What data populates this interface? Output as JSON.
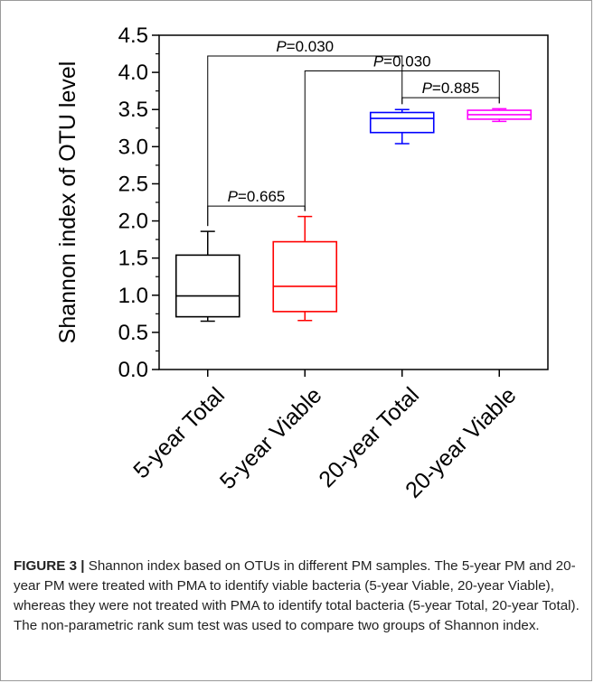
{
  "chart_data": {
    "type": "box",
    "ylabel": "Shannon index of OTU level",
    "ylim": [
      0.0,
      4.5
    ],
    "yticks": [
      "0.0",
      "0.5",
      "1.0",
      "1.5",
      "2.0",
      "2.5",
      "3.0",
      "3.5",
      "4.0",
      "4.5"
    ],
    "categories": [
      "5-year Total",
      "5-year Viable",
      "20-year Total",
      "20-year Viable"
    ],
    "colors": [
      "#000000",
      "#ff0000",
      "#0000ff",
      "#ff00ff"
    ],
    "boxes": [
      {
        "min": 0.65,
        "q1": 0.71,
        "median": 0.99,
        "q3": 1.54,
        "max": 1.86
      },
      {
        "min": 0.66,
        "q1": 0.78,
        "median": 1.12,
        "q3": 1.72,
        "max": 2.06
      },
      {
        "min": 3.04,
        "q1": 3.19,
        "median": 3.38,
        "q3": 3.46,
        "max": 3.5
      },
      {
        "min": 3.34,
        "q1": 3.37,
        "median": 3.43,
        "q3": 3.49,
        "max": 3.51
      }
    ],
    "comparisons": [
      {
        "groups": [
          0,
          1
        ],
        "label_prefix": "P",
        "label_value": "=0.665",
        "y": 2.2
      },
      {
        "groups": [
          0,
          2
        ],
        "label_prefix": "P",
        "label_value": "=0.030",
        "y": 4.22
      },
      {
        "groups": [
          1,
          3
        ],
        "label_prefix": "P",
        "label_value": "=0.030",
        "y": 4.02
      },
      {
        "groups": [
          2,
          3
        ],
        "label_prefix": "P",
        "label_value": "=0.885",
        "y": 3.66
      }
    ]
  },
  "caption": {
    "label": "FIGURE 3 |",
    "text": " Shannon index based on OTUs in different PM samples. The 5-year PM and 20-year PM were treated with PMA to identify viable bacteria (5-year Viable, 20-year Viable), whereas they were not treated with PMA to identify total bacteria (5-year Total, 20-year Total). The non-parametric rank sum test was used to compare two groups of Shannon index."
  }
}
